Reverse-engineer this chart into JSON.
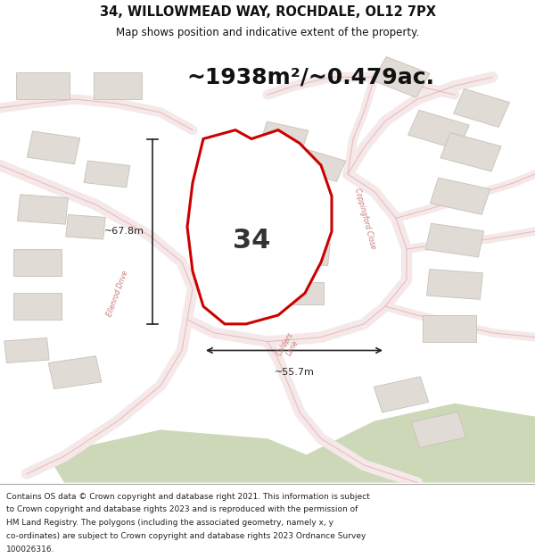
{
  "title_line1": "34, WILLOWMEAD WAY, ROCHDALE, OL12 7PX",
  "title_line2": "Map shows position and indicative extent of the property.",
  "area_text": "~1938m²/~0.479ac.",
  "label_34": "34",
  "dim_vertical": "~67.8m",
  "dim_horizontal": "~55.7m",
  "road_label_ellenrod": "Ellenrod Drive",
  "road_label_calders": "Calders\nLane",
  "road_label_coppingford": "Coppingford Close",
  "footnote_lines": [
    "Contains OS data © Crown copyright and database right 2021. This information is subject",
    "to Crown copyright and database rights 2023 and is reproduced with the permission of",
    "HM Land Registry. The polygons (including the associated geometry, namely x, y",
    "co-ordinates) are subject to Crown copyright and database rights 2023 Ordnance Survey",
    "100026316."
  ],
  "map_bg": "#ffffff",
  "road_fill": "#f5e8e8",
  "road_edge": "#e8b8b8",
  "building_fill": "#e0dbd5",
  "building_edge": "#c8c0b8",
  "grass_fill": "#cdd8b8",
  "plot_edge": "#cc0000",
  "plot_fill": "#ffffff",
  "dim_color": "#222222",
  "road_text_color": "#c87878",
  "title_bg": "#ffffff",
  "foot_bg": "#ffffff"
}
